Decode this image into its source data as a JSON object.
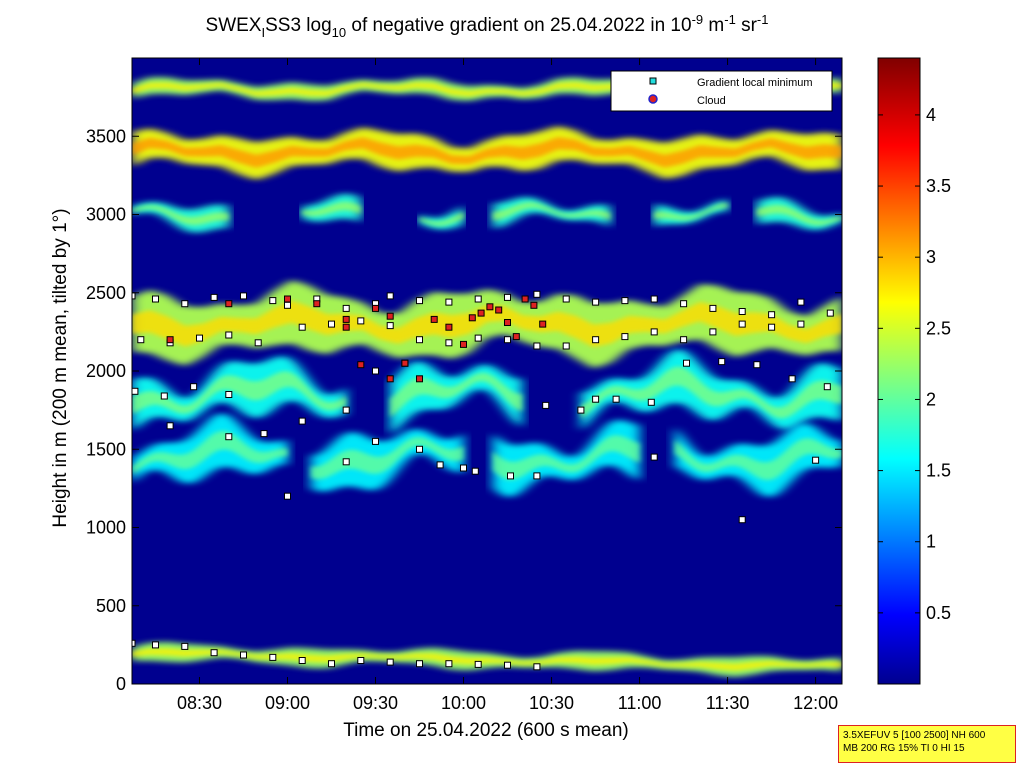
{
  "chart_data": {
    "type": "heatmap",
    "title_parts": {
      "a": "SWEX",
      "a_sub": "I",
      "b": "SS3 log",
      "b_sub": "10",
      "c": " of negative gradient on 25.04.2022 in 10",
      "c_sup": "-9",
      "d": " m",
      "d_sup": "-1",
      "e": " sr",
      "e_sup": "-1"
    },
    "xlabel": "Time on 25.04.2022 (600 s mean)",
    "ylabel": "Height in m (200 m mean, tilted by 1°)",
    "x_ticks": [
      "08:30",
      "09:00",
      "09:30",
      "10:00",
      "10:30",
      "11:00",
      "11:30",
      "12:00"
    ],
    "x_tick_minutes": [
      510,
      540,
      570,
      600,
      630,
      660,
      690,
      720
    ],
    "xlim_minutes": [
      487,
      729
    ],
    "y_ticks": [
      0,
      500,
      1000,
      1500,
      2000,
      2500,
      3000,
      3500
    ],
    "ylim": [
      0,
      4000
    ],
    "colorbar": {
      "ticks": [
        0.5,
        1,
        1.5,
        2,
        2.5,
        3,
        3.5,
        4
      ],
      "range": [
        0,
        4.4
      ],
      "colormap": "jet"
    },
    "legend": {
      "placement": "top-right",
      "entries": [
        {
          "label": "Gradient local minimum",
          "marker": "square",
          "color": "#22dddd"
        },
        {
          "label": "Cloud",
          "marker": "circle",
          "color": "#dd2222"
        }
      ]
    },
    "layers": [
      {
        "name": "bottom-band",
        "y_center": [
          200,
          110
        ],
        "value": 2.3
      },
      {
        "name": "layer-1500",
        "y_center": 1450,
        "value": 1.6
      },
      {
        "name": "layer-1850",
        "y_center": 1850,
        "value": 1.7
      },
      {
        "name": "layer-2300",
        "y_center": 2300,
        "value": 2.4
      },
      {
        "name": "layer-3000",
        "y_center": 3000,
        "value": 1.8
      },
      {
        "name": "layer-3400",
        "y_center": 3400,
        "value": 2.7
      },
      {
        "name": "layer-3800",
        "y_center": 3800,
        "value": 2.3
      }
    ],
    "series": [
      {
        "name": "Gradient local minimum",
        "x": [
          487,
          495,
          505,
          515,
          525,
          535,
          540,
          550,
          560,
          570,
          575,
          585,
          595,
          605,
          615,
          625,
          635,
          645,
          655,
          665,
          675,
          685,
          695,
          705,
          715,
          725,
          490,
          500,
          510,
          520,
          530,
          545,
          555,
          565,
          575,
          585,
          595,
          605,
          615,
          625,
          635,
          645,
          655,
          665,
          675,
          685,
          695,
          705,
          715,
          488,
          498,
          508,
          520,
          532,
          545,
          560,
          570,
          580,
          592,
          604,
          616,
          628,
          640,
          652,
          664,
          676,
          688,
          700,
          712,
          724,
          500,
          520,
          540,
          560,
          570,
          585,
          600,
          625,
          645,
          665,
          695,
          720,
          487,
          495,
          505,
          515,
          525,
          535,
          545,
          555,
          565,
          575,
          585,
          595,
          605,
          615,
          625
        ],
        "y": [
          2480,
          2460,
          2430,
          2470,
          2480,
          2450,
          2420,
          2460,
          2400,
          2430,
          2480,
          2450,
          2440,
          2460,
          2470,
          2490,
          2460,
          2440,
          2450,
          2460,
          2430,
          2400,
          2380,
          2360,
          2440,
          2370,
          2200,
          2180,
          2210,
          2230,
          2180,
          2280,
          2300,
          2320,
          2290,
          2200,
          2180,
          2210,
          2200,
          2160,
          2160,
          2200,
          2220,
          2250,
          2200,
          2250,
          2300,
          2280,
          2300,
          1870,
          1840,
          1900,
          1850,
          1600,
          1680,
          1750,
          2000,
          2050,
          1400,
          1360,
          1330,
          1780,
          1750,
          1820,
          1800,
          2050,
          2060,
          2040,
          1950,
          1900,
          1650,
          1580,
          1200,
          1420,
          1550,
          1500,
          1380,
          1330,
          1820,
          1450,
          1050,
          1430,
          260,
          250,
          240,
          200,
          185,
          170,
          150,
          130,
          150,
          140,
          130,
          130,
          125,
          120,
          110
        ],
        "color": "#ffffff"
      },
      {
        "name": "Cloud",
        "x": [
          500,
          520,
          540,
          560,
          570,
          575,
          580,
          585,
          590,
          595,
          600,
          603,
          606,
          609,
          612,
          615,
          618,
          621,
          624,
          627,
          550,
          560,
          565,
          575
        ],
        "y": [
          2200,
          2430,
          2460,
          2280,
          2400,
          2350,
          2050,
          1950,
          2330,
          2280,
          2170,
          2340,
          2370,
          2410,
          2390,
          2310,
          2220,
          2460,
          2420,
          2300,
          2430,
          2330,
          2040,
          1950
        ],
        "color": "#dd2222"
      }
    ]
  },
  "info_box": {
    "line1": "3.5XEFUV 5 [100 2500] NH 600",
    "line2": "MB 200 RG 15% TI 0 HI 15"
  }
}
